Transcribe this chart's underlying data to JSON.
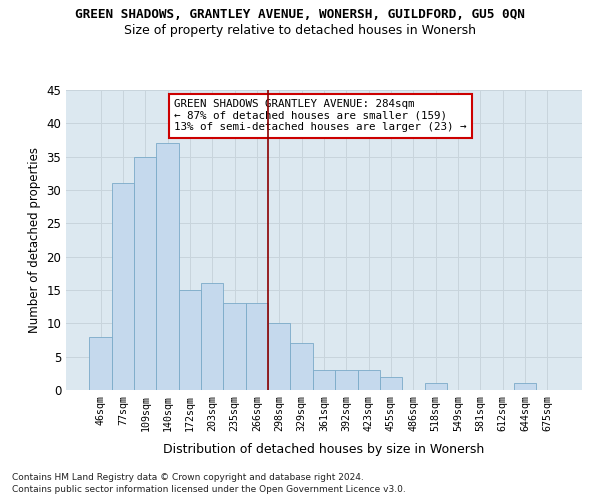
{
  "title": "GREEN SHADOWS, GRANTLEY AVENUE, WONERSH, GUILDFORD, GU5 0QN",
  "subtitle": "Size of property relative to detached houses in Wonersh",
  "xlabel": "Distribution of detached houses by size in Wonersh",
  "ylabel": "Number of detached properties",
  "categories": [
    "46sqm",
    "77sqm",
    "109sqm",
    "140sqm",
    "172sqm",
    "203sqm",
    "235sqm",
    "266sqm",
    "298sqm",
    "329sqm",
    "361sqm",
    "392sqm",
    "423sqm",
    "455sqm",
    "486sqm",
    "518sqm",
    "549sqm",
    "581sqm",
    "612sqm",
    "644sqm",
    "675sqm"
  ],
  "values": [
    8,
    31,
    35,
    37,
    15,
    16,
    13,
    13,
    10,
    7,
    3,
    3,
    3,
    2,
    0,
    1,
    0,
    0,
    0,
    1,
    0
  ],
  "bar_color": "#c5d9ed",
  "bar_edge_color": "#7aaac8",
  "vline_x": 7.5,
  "vline_color": "#8b0000",
  "ylim": [
    0,
    45
  ],
  "yticks": [
    0,
    5,
    10,
    15,
    20,
    25,
    30,
    35,
    40,
    45
  ],
  "annotation_line1": "GREEN SHADOWS GRANTLEY AVENUE: 284sqm",
  "annotation_line2": "← 87% of detached houses are smaller (159)",
  "annotation_line3": "13% of semi-detached houses are larger (23) →",
  "bg_color": "#dce8f0",
  "grid_color": "#c8d4dc",
  "footer_line1": "Contains HM Land Registry data © Crown copyright and database right 2024.",
  "footer_line2": "Contains public sector information licensed under the Open Government Licence v3.0."
}
